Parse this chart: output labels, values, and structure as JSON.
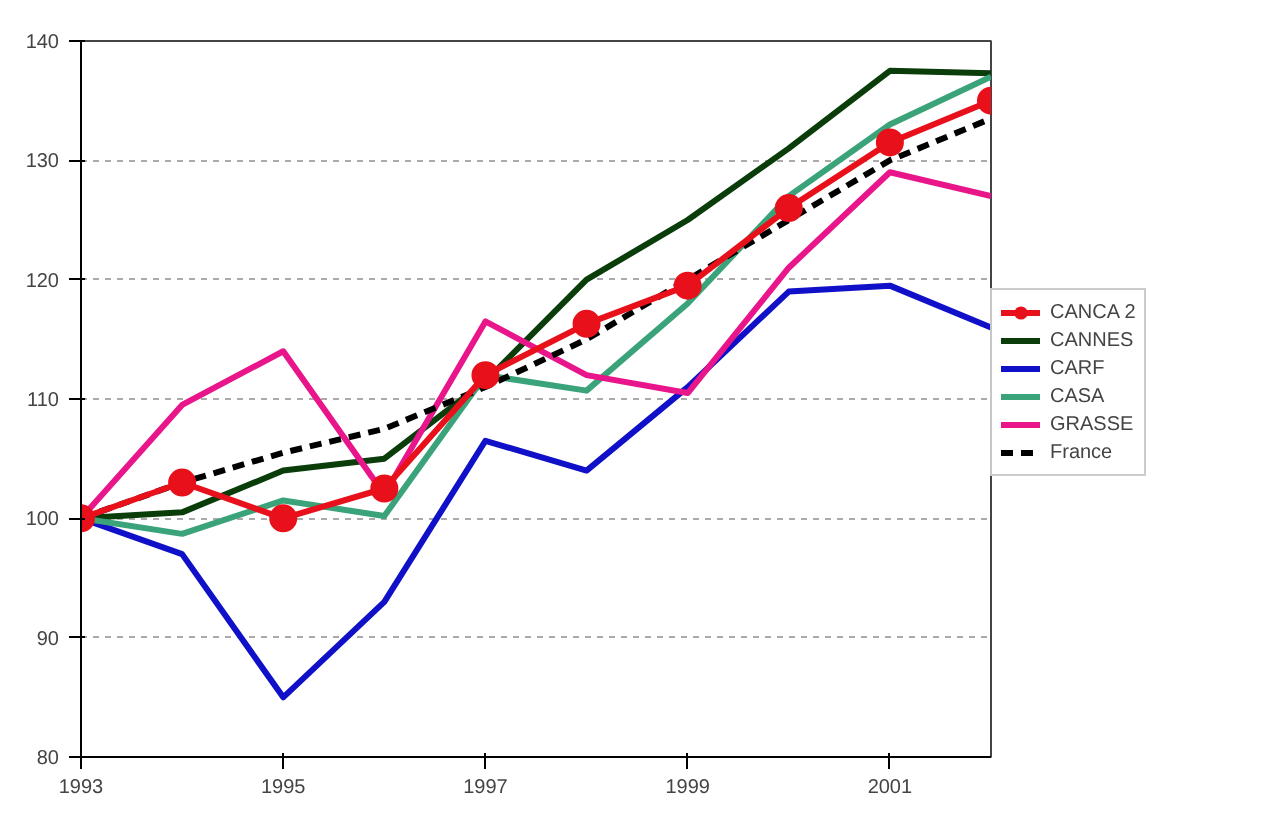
{
  "chart_data": {
    "type": "line",
    "x": [
      1993,
      1994,
      1995,
      1996,
      1997,
      1998,
      1999,
      2000,
      2001,
      2002
    ],
    "xlim": [
      1993,
      2002
    ],
    "xticks": [
      1993,
      1995,
      1997,
      1999,
      2001
    ],
    "ylim": [
      80,
      140
    ],
    "yticks": [
      80,
      90,
      100,
      110,
      120,
      130,
      140
    ],
    "grid": "y",
    "legend": "right",
    "series": [
      {
        "name": "CANCA 2",
        "color": "#e8101a",
        "marker": "circle",
        "values": [
          100,
          103,
          100,
          102.5,
          112,
          116.3,
          119.5,
          126,
          131.5,
          135
        ]
      },
      {
        "name": "CANNES",
        "color": "#0a3d0a",
        "values": [
          100,
          100.5,
          104,
          105,
          111.5,
          120,
          125,
          131,
          137.5,
          137.3
        ]
      },
      {
        "name": "CARF",
        "color": "#1010c8",
        "values": [
          100,
          97,
          85,
          93,
          106.5,
          104,
          111,
          119,
          119.5,
          116
        ]
      },
      {
        "name": "CASA",
        "color": "#3aa37a",
        "values": [
          100,
          98.7,
          101.5,
          100.2,
          112,
          110.7,
          118,
          127,
          133,
          137
        ]
      },
      {
        "name": "GRASSE",
        "color": "#e8168a",
        "values": [
          100,
          109.5,
          114,
          102,
          116.5,
          112,
          110.5,
          121,
          129,
          127
        ]
      },
      {
        "name": "France",
        "color": "#000000",
        "line_style": "dashed",
        "values": [
          100,
          103,
          105.5,
          107.5,
          111,
          115,
          120,
          125,
          130,
          133.5
        ]
      }
    ]
  }
}
